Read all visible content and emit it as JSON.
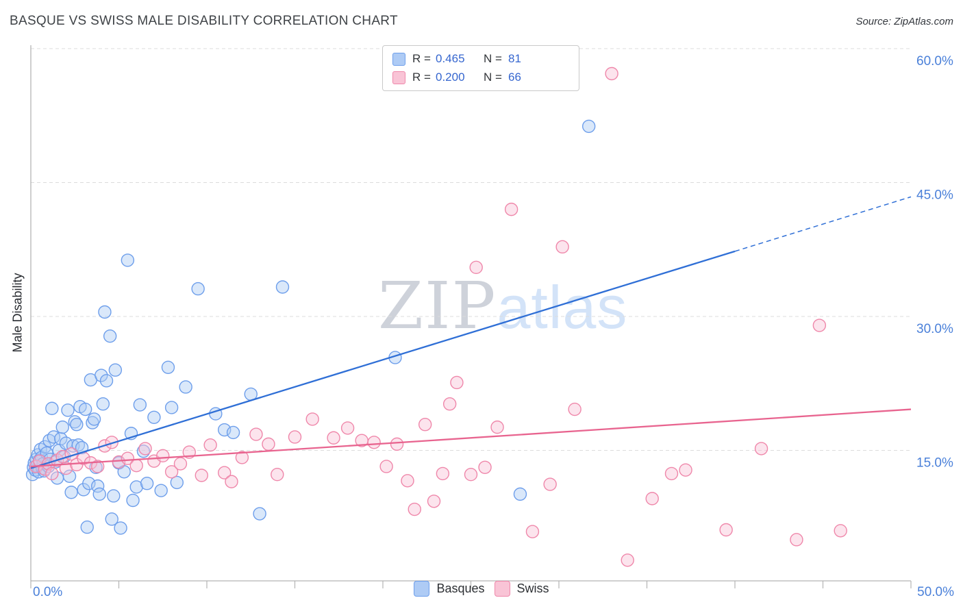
{
  "header": {
    "title": "BASQUE VS SWISS MALE DISABILITY CORRELATION CHART",
    "source": "Source: ZipAtlas.com"
  },
  "axes": {
    "y_label": "Male Disability",
    "x_min_label": "0.0%",
    "x_max_label": "50.0%"
  },
  "watermark": {
    "part1": "ZIP",
    "part2": "atlas"
  },
  "legend_box": {
    "rows": [
      {
        "series": "Basques",
        "r_label": "R =",
        "r_value": "0.465",
        "n_label": "N =",
        "n_value": "81"
      },
      {
        "series": "Swiss",
        "r_label": "R =",
        "r_value": "0.200",
        "n_label": "N =",
        "n_value": "66"
      }
    ]
  },
  "bottom_legend": {
    "items": [
      {
        "label": "Basques"
      },
      {
        "label": "Swiss"
      }
    ]
  },
  "colors": {
    "basque_fill": "#aecbf5",
    "basque_stroke": "#6d9eeb",
    "basque_trend": "#2f6fd6",
    "swiss_fill": "#f9c4d6",
    "swiss_stroke": "#ef87aa",
    "swiss_trend": "#e8648f",
    "axis_label_blue": "#4a80d9",
    "grid": "#dcdcdc",
    "axis": "#b3b3b3",
    "legend_number_blue": "#3566cf"
  },
  "chart_data": {
    "type": "scatter",
    "title": "BASQUE VS SWISS MALE DISABILITY CORRELATION CHART",
    "xlabel": "",
    "ylabel": "Male Disability",
    "xlim": [
      0,
      50
    ],
    "ylim": [
      0,
      62
    ],
    "grid": "horizontal-dashed",
    "legend_position": "top-center",
    "x_ticks": [
      0,
      5,
      10,
      15,
      20,
      25,
      30,
      35,
      40,
      45,
      50
    ],
    "y_gridlines": [
      {
        "value": 60,
        "label": "60.0%"
      },
      {
        "value": 45,
        "label": "45.0%"
      },
      {
        "value": 30,
        "label": "30.0%"
      },
      {
        "value": 15,
        "label": "15.0%"
      }
    ],
    "series": [
      {
        "name": "Basques",
        "R": 0.465,
        "N": 81,
        "fill": "#aecbf5",
        "stroke": "#6d9eeb",
        "point_name": "basque-point",
        "points": [
          [
            0.1,
            12.3
          ],
          [
            0.15,
            13.1
          ],
          [
            0.2,
            13.6
          ],
          [
            0.25,
            12.8
          ],
          [
            0.3,
            14.0
          ],
          [
            0.35,
            13.3
          ],
          [
            0.4,
            14.5
          ],
          [
            0.45,
            12.6
          ],
          [
            0.5,
            13.9
          ],
          [
            0.55,
            15.1
          ],
          [
            0.6,
            14.2
          ],
          [
            0.65,
            13.0
          ],
          [
            0.7,
            13.5
          ],
          [
            0.75,
            12.7
          ],
          [
            0.8,
            15.4
          ],
          [
            0.9,
            14.7
          ],
          [
            1.0,
            13.2
          ],
          [
            1.05,
            16.1
          ],
          [
            1.1,
            14.0
          ],
          [
            1.2,
            19.7
          ],
          [
            1.3,
            16.5
          ],
          [
            1.4,
            13.7
          ],
          [
            1.5,
            11.9
          ],
          [
            1.6,
            15.0
          ],
          [
            1.7,
            16.3
          ],
          [
            1.8,
            17.6
          ],
          [
            1.9,
            14.3
          ],
          [
            2.0,
            15.8
          ],
          [
            2.1,
            19.5
          ],
          [
            2.2,
            12.1
          ],
          [
            2.3,
            10.3
          ],
          [
            2.4,
            15.5
          ],
          [
            2.5,
            18.2
          ],
          [
            2.6,
            17.9
          ],
          [
            2.7,
            15.6
          ],
          [
            2.8,
            19.9
          ],
          [
            2.9,
            15.3
          ],
          [
            3.0,
            10.6
          ],
          [
            3.1,
            19.6
          ],
          [
            3.2,
            6.4
          ],
          [
            3.3,
            11.3
          ],
          [
            3.4,
            22.9
          ],
          [
            3.5,
            18.1
          ],
          [
            3.6,
            18.5
          ],
          [
            3.7,
            13.1
          ],
          [
            3.8,
            11.0
          ],
          [
            3.9,
            10.1
          ],
          [
            4.0,
            23.4
          ],
          [
            4.1,
            20.2
          ],
          [
            4.2,
            30.5
          ],
          [
            4.3,
            22.8
          ],
          [
            4.5,
            27.8
          ],
          [
            4.6,
            7.3
          ],
          [
            4.7,
            9.9
          ],
          [
            4.8,
            24.0
          ],
          [
            5.0,
            13.6
          ],
          [
            5.1,
            6.3
          ],
          [
            5.3,
            12.6
          ],
          [
            5.5,
            36.3
          ],
          [
            5.7,
            16.9
          ],
          [
            5.8,
            9.4
          ],
          [
            6.0,
            10.9
          ],
          [
            6.2,
            20.1
          ],
          [
            6.4,
            14.9
          ],
          [
            6.6,
            11.3
          ],
          [
            7.0,
            18.7
          ],
          [
            7.4,
            10.5
          ],
          [
            7.8,
            24.3
          ],
          [
            8.0,
            19.8
          ],
          [
            8.3,
            11.4
          ],
          [
            8.8,
            22.1
          ],
          [
            9.5,
            33.1
          ],
          [
            10.5,
            19.1
          ],
          [
            11.0,
            17.3
          ],
          [
            11.5,
            17.0
          ],
          [
            12.5,
            21.3
          ],
          [
            13.0,
            7.9
          ],
          [
            14.3,
            33.3
          ],
          [
            20.7,
            25.4
          ],
          [
            27.8,
            10.1
          ],
          [
            31.7,
            51.3
          ]
        ]
      },
      {
        "name": "Swiss",
        "R": 0.2,
        "N": 66,
        "fill": "#f9c4d6",
        "stroke": "#ef87aa",
        "point_name": "swiss-point",
        "points": [
          [
            0.3,
            13.2
          ],
          [
            0.5,
            13.8
          ],
          [
            0.8,
            12.9
          ],
          [
            1.0,
            13.5
          ],
          [
            1.2,
            12.4
          ],
          [
            1.5,
            13.9
          ],
          [
            1.8,
            14.3
          ],
          [
            2.0,
            13.0
          ],
          [
            2.3,
            14.6
          ],
          [
            2.6,
            13.4
          ],
          [
            3.0,
            14.1
          ],
          [
            3.4,
            13.6
          ],
          [
            3.8,
            13.2
          ],
          [
            4.2,
            15.5
          ],
          [
            4.6,
            15.9
          ],
          [
            5.0,
            13.7
          ],
          [
            5.5,
            14.1
          ],
          [
            6.0,
            13.3
          ],
          [
            6.5,
            15.2
          ],
          [
            7.0,
            13.8
          ],
          [
            7.5,
            14.4
          ],
          [
            8.0,
            12.6
          ],
          [
            8.5,
            13.5
          ],
          [
            9.0,
            14.8
          ],
          [
            9.7,
            12.2
          ],
          [
            10.2,
            15.6
          ],
          [
            11.0,
            12.5
          ],
          [
            11.4,
            11.5
          ],
          [
            12.0,
            14.2
          ],
          [
            12.8,
            16.8
          ],
          [
            13.5,
            15.7
          ],
          [
            14.0,
            12.3
          ],
          [
            15.0,
            16.5
          ],
          [
            16.0,
            18.5
          ],
          [
            17.2,
            16.4
          ],
          [
            18.0,
            17.5
          ],
          [
            18.8,
            16.1
          ],
          [
            19.5,
            15.9
          ],
          [
            20.2,
            13.2
          ],
          [
            20.8,
            15.7
          ],
          [
            21.4,
            11.6
          ],
          [
            21.8,
            8.4
          ],
          [
            22.4,
            17.9
          ],
          [
            22.9,
            9.3
          ],
          [
            23.4,
            12.4
          ],
          [
            23.8,
            20.2
          ],
          [
            24.2,
            22.6
          ],
          [
            25.0,
            12.3
          ],
          [
            25.3,
            35.5
          ],
          [
            25.8,
            13.1
          ],
          [
            26.5,
            17.6
          ],
          [
            27.3,
            42.0
          ],
          [
            28.5,
            5.9
          ],
          [
            29.5,
            11.2
          ],
          [
            30.2,
            37.8
          ],
          [
            30.9,
            19.6
          ],
          [
            33.0,
            57.2
          ],
          [
            33.9,
            2.7
          ],
          [
            35.3,
            9.6
          ],
          [
            36.4,
            12.4
          ],
          [
            37.2,
            12.8
          ],
          [
            39.5,
            6.1
          ],
          [
            41.5,
            15.2
          ],
          [
            43.5,
            5.0
          ],
          [
            44.8,
            29.0
          ],
          [
            46.0,
            6.0
          ]
        ]
      }
    ],
    "trend_lines": [
      {
        "series": "Basques",
        "color": "#2f6fd6",
        "start": [
          0,
          13.0
        ],
        "solid_end": [
          40,
          37.3
        ],
        "dashed_end": [
          50,
          43.4
        ]
      },
      {
        "series": "Swiss",
        "color": "#e8648f",
        "start": [
          0,
          13.2
        ],
        "solid_end": [
          50,
          19.6
        ]
      }
    ]
  }
}
